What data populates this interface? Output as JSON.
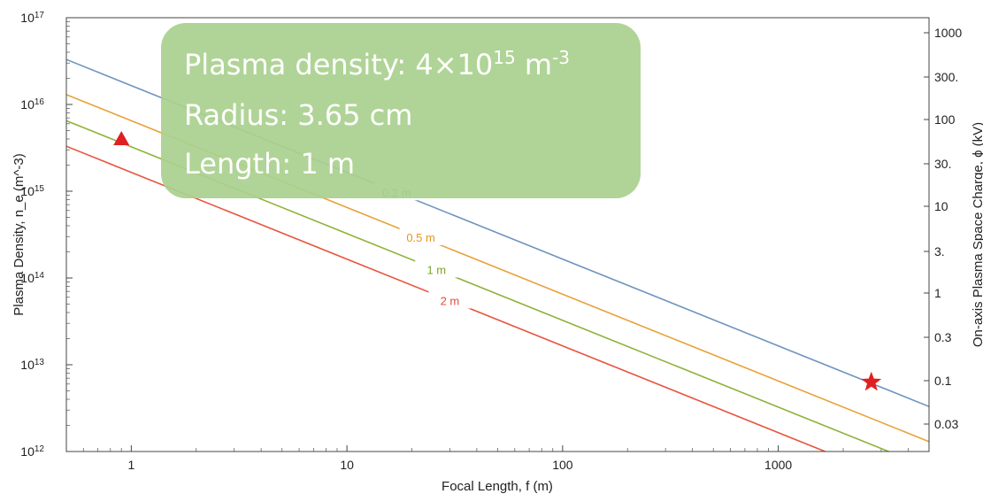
{
  "chart_data": {
    "type": "line",
    "xlabel": "Focal Length, f (m)",
    "ylabel": "Plasma Density, n_e (m^-3)",
    "y2label": "On-axis Plasma Space Charge, ϕ (kV)",
    "x_scale": "log",
    "y_scale": "log",
    "xlim": [
      0.5,
      5000
    ],
    "ylim": [
      1000000000000.0,
      1e+17
    ],
    "x_ticks": [
      {
        "value": 1,
        "label": "1"
      },
      {
        "value": 10,
        "label": "10"
      },
      {
        "value": 100,
        "label": "100"
      },
      {
        "value": 1000,
        "label": "1000"
      }
    ],
    "y_ticks": [
      {
        "exp": 12,
        "label": "10",
        "sup": "12"
      },
      {
        "exp": 13,
        "label": "10",
        "sup": "13"
      },
      {
        "exp": 14,
        "label": "10",
        "sup": "14"
      },
      {
        "exp": 15,
        "label": "10",
        "sup": "15"
      },
      {
        "exp": 16,
        "label": "10",
        "sup": "16"
      },
      {
        "exp": 17,
        "label": "10",
        "sup": "17"
      }
    ],
    "y2_ticks": [
      {
        "value": 1000,
        "label": "1000"
      },
      {
        "value": 300,
        "label": "300."
      },
      {
        "value": 100,
        "label": "100"
      },
      {
        "value": 30,
        "label": "30."
      },
      {
        "value": 10,
        "label": "10"
      },
      {
        "value": 3,
        "label": "3."
      },
      {
        "value": 1,
        "label": "1"
      },
      {
        "value": 0.3,
        "label": "0.3"
      },
      {
        "value": 0.1,
        "label": "0.1"
      },
      {
        "value": 0.03,
        "label": "0.03"
      }
    ],
    "series": [
      {
        "name": "0.2 m",
        "color": "#6f93bf",
        "label_color": "#5a6f8a",
        "x": [
          0.5,
          5000
        ],
        "y": [
          3.3e+16,
          3300000000000.0
        ],
        "label_x": 17
      },
      {
        "name": "0.5 m",
        "color": "#e8a23b",
        "label_color": "#e8951e",
        "x": [
          0.5,
          5000
        ],
        "y": [
          1.3e+16,
          1300000000000.0
        ],
        "label_x": 22
      },
      {
        "name": "1 m",
        "color": "#8db33a",
        "label_color": "#7ea52a",
        "x": [
          0.5,
          5000
        ],
        "y": [
          6500000000000000.0,
          650000000000.0
        ],
        "label_x": 26
      },
      {
        "name": "2 m",
        "color": "#e8533d",
        "label_color": "#e0503a",
        "x": [
          0.5,
          5000
        ],
        "y": [
          3300000000000000.0,
          330000000000.0
        ],
        "label_x": 30
      }
    ],
    "markers": [
      {
        "shape": "triangle",
        "color": "#e02020",
        "x": 0.9,
        "y": 4000000000000000.0
      },
      {
        "shape": "star",
        "color": "#e02020",
        "x": 2700,
        "y": 6300000000000.0
      }
    ]
  },
  "callout": {
    "lines": [
      {
        "text": "Plasma density: 4×10",
        "sup": "15",
        "tail": " m",
        "tailsup": "-3"
      },
      {
        "text": "Radius: 3.65 cm"
      },
      {
        "text": "Length: 1 m"
      }
    ],
    "fill": "#a9d08e"
  }
}
